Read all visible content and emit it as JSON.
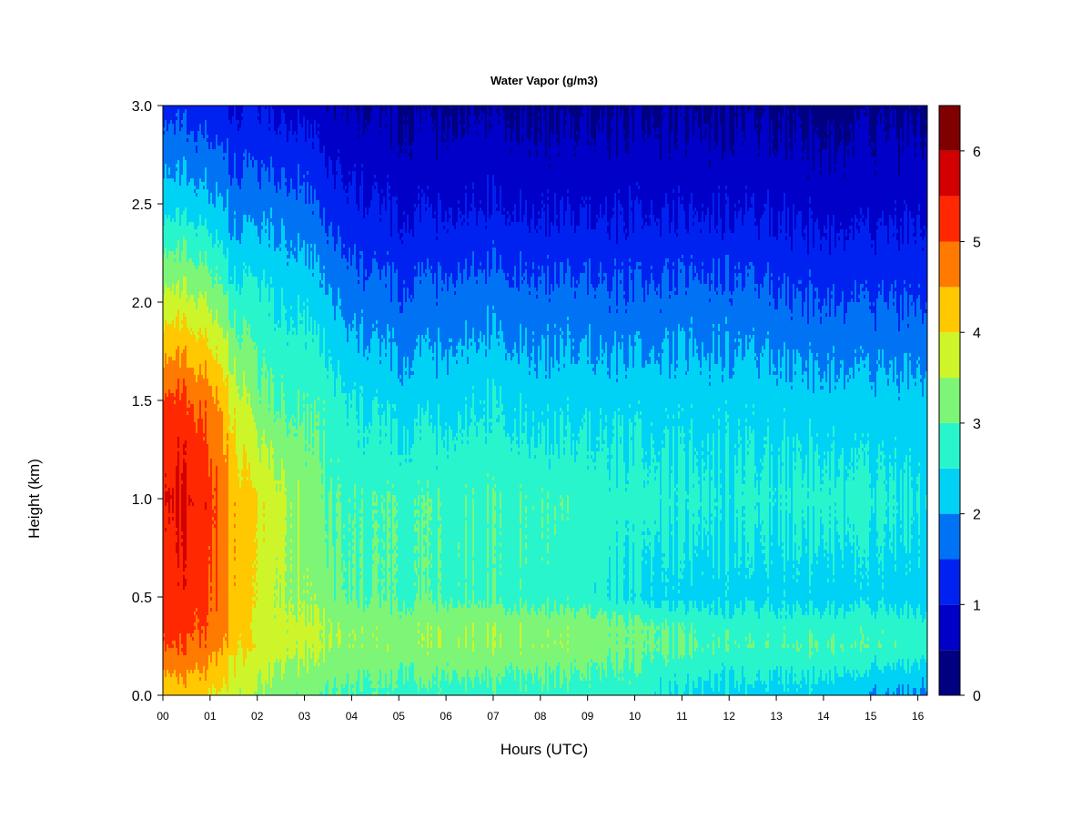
{
  "chart_data": {
    "type": "heatmap",
    "title": "Water Vapor (g/m3)",
    "xlabel": "Hours (UTC)",
    "ylabel": "Height (km)",
    "xlim": [
      0,
      16.2
    ],
    "ylim": [
      0,
      3.0
    ],
    "x_ticks": [
      0,
      1,
      2,
      3,
      4,
      5,
      6,
      7,
      8,
      9,
      10,
      11,
      12,
      13,
      14,
      15,
      16
    ],
    "x_tick_labels": [
      "00",
      "01",
      "02",
      "03",
      "04",
      "05",
      "06",
      "07",
      "08",
      "09",
      "10",
      "11",
      "12",
      "13",
      "14",
      "15",
      "16"
    ],
    "y_ticks": [
      0.0,
      0.5,
      1.0,
      1.5,
      2.0,
      2.5,
      3.0
    ],
    "y_tick_labels": [
      "0.0",
      "0.5",
      "1.0",
      "1.5",
      "2.0",
      "2.5",
      "3.0"
    ],
    "colorbar": {
      "levels": [
        0,
        0.5,
        1,
        1.5,
        2,
        2.5,
        3,
        3.5,
        4,
        4.5,
        5,
        5.5,
        6,
        6.5
      ],
      "colors": [
        "#000080",
        "#0000C8",
        "#0022F0",
        "#0073F5",
        "#00D2F5",
        "#29F5CD",
        "#7DF576",
        "#CDF529",
        "#FFC800",
        "#FF7A00",
        "#FF2800",
        "#D20000",
        "#800000"
      ],
      "tick_values": [
        0,
        1,
        2,
        3,
        4,
        5,
        6
      ],
      "tick_labels": [
        "0",
        "1",
        "2",
        "3",
        "4",
        "5",
        "6"
      ]
    },
    "profiles": {
      "heights_km": [
        0.0,
        0.25,
        0.35,
        0.5,
        1.0,
        1.5,
        2.0,
        2.5,
        3.0
      ],
      "times_hr": [
        0,
        0.5,
        1.0,
        1.5,
        2.0,
        2.5,
        3.0,
        3.5,
        4.0,
        5.0,
        6.0,
        7.0,
        8.0,
        9.0,
        10.0,
        11.0,
        12.0,
        13.0,
        14.0,
        15.0,
        16.2
      ],
      "values_gm3": [
        [
          4.2,
          5.1,
          5.3,
          5.3,
          5.6,
          5.2,
          3.8,
          2.4,
          1.4
        ],
        [
          4.2,
          5.0,
          5.2,
          5.3,
          5.6,
          5.1,
          3.7,
          2.3,
          1.3
        ],
        [
          4.1,
          4.8,
          5.0,
          5.1,
          5.3,
          4.8,
          3.5,
          2.2,
          1.2
        ],
        [
          3.7,
          4.2,
          4.4,
          4.4,
          4.4,
          3.9,
          2.8,
          1.8,
          1.0
        ],
        [
          3.3,
          3.8,
          3.7,
          3.8,
          3.9,
          3.1,
          2.6,
          1.7,
          0.9
        ],
        [
          3.2,
          3.8,
          3.7,
          3.6,
          3.7,
          3.0,
          2.5,
          1.8,
          0.9
        ],
        [
          3.1,
          3.6,
          3.6,
          3.4,
          3.3,
          2.9,
          2.4,
          1.6,
          0.8
        ],
        [
          3.0,
          3.5,
          3.5,
          3.2,
          3.0,
          2.8,
          2.1,
          1.3,
          0.6
        ],
        [
          2.9,
          3.4,
          3.4,
          3.0,
          2.9,
          2.5,
          1.8,
          1.1,
          0.5
        ],
        [
          2.8,
          3.3,
          3.3,
          2.9,
          2.9,
          2.3,
          1.6,
          0.9,
          0.4
        ],
        [
          2.8,
          3.4,
          3.4,
          2.9,
          2.9,
          2.3,
          1.7,
          0.9,
          0.4
        ],
        [
          2.8,
          3.4,
          3.4,
          2.9,
          2.9,
          2.5,
          1.8,
          1.0,
          0.5
        ],
        [
          2.8,
          3.4,
          3.3,
          2.8,
          2.9,
          2.3,
          1.7,
          0.9,
          0.4
        ],
        [
          2.7,
          3.3,
          3.3,
          2.7,
          2.8,
          2.3,
          1.7,
          0.9,
          0.4
        ],
        [
          2.7,
          3.1,
          3.1,
          2.4,
          2.7,
          2.3,
          1.6,
          0.9,
          0.4
        ],
        [
          2.4,
          3.0,
          2.9,
          2.3,
          2.6,
          2.3,
          1.7,
          0.9,
          0.4
        ],
        [
          2.3,
          2.9,
          2.8,
          2.3,
          2.6,
          2.3,
          1.7,
          0.9,
          0.4
        ],
        [
          2.3,
          2.9,
          2.8,
          2.3,
          2.6,
          2.3,
          1.6,
          0.9,
          0.4
        ],
        [
          2.3,
          3.0,
          2.8,
          2.3,
          2.7,
          2.2,
          1.5,
          0.8,
          0.3
        ],
        [
          2.0,
          2.9,
          2.8,
          2.3,
          2.6,
          2.2,
          1.5,
          0.8,
          0.4
        ],
        [
          1.9,
          2.8,
          2.7,
          2.3,
          2.5,
          2.2,
          1.5,
          0.9,
          0.4
        ]
      ]
    }
  }
}
